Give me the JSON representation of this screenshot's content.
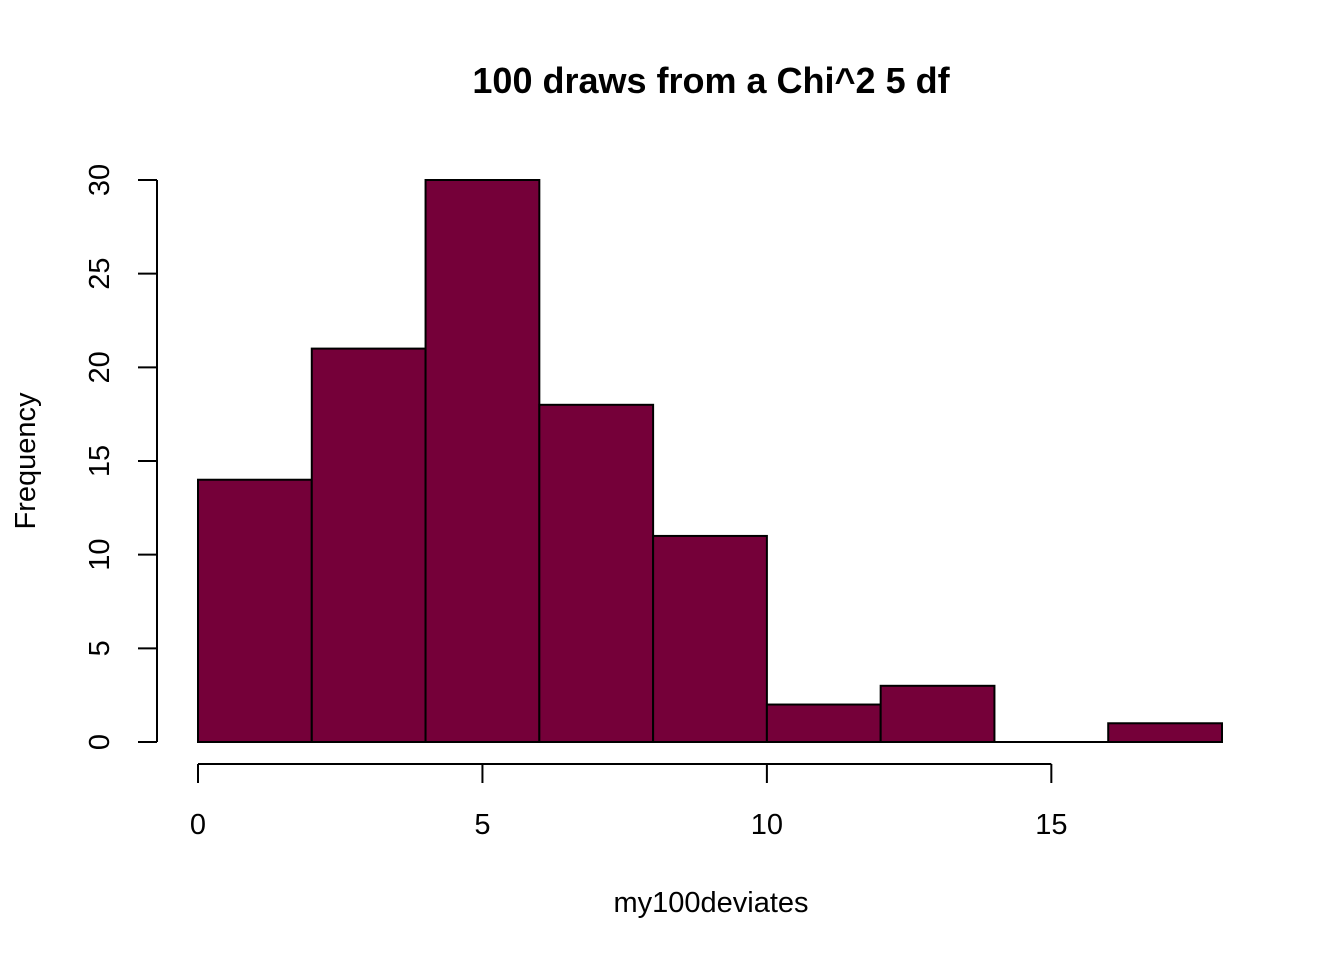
{
  "chart_data": {
    "type": "bar",
    "title": "100 draws from a Chi^2 5 df",
    "xlabel": "my100deviates",
    "ylabel": "Frequency",
    "bins": [
      {
        "x0": 0,
        "x1": 2,
        "count": 14
      },
      {
        "x0": 2,
        "x1": 4,
        "count": 21
      },
      {
        "x0": 4,
        "x1": 6,
        "count": 30
      },
      {
        "x0": 6,
        "x1": 8,
        "count": 18
      },
      {
        "x0": 8,
        "x1": 10,
        "count": 11
      },
      {
        "x0": 10,
        "x1": 12,
        "count": 2
      },
      {
        "x0": 12,
        "x1": 14,
        "count": 3
      },
      {
        "x0": 14,
        "x1": 16,
        "count": 0
      },
      {
        "x0": 16,
        "x1": 18,
        "count": 1
      }
    ],
    "xlim": [
      0,
      18
    ],
    "ylim": [
      0,
      30
    ],
    "x_ticks": [
      0,
      5,
      10,
      15
    ],
    "y_ticks": [
      0,
      5,
      10,
      15,
      20,
      25,
      30
    ],
    "bar_color": "#750039",
    "grid": false
  }
}
